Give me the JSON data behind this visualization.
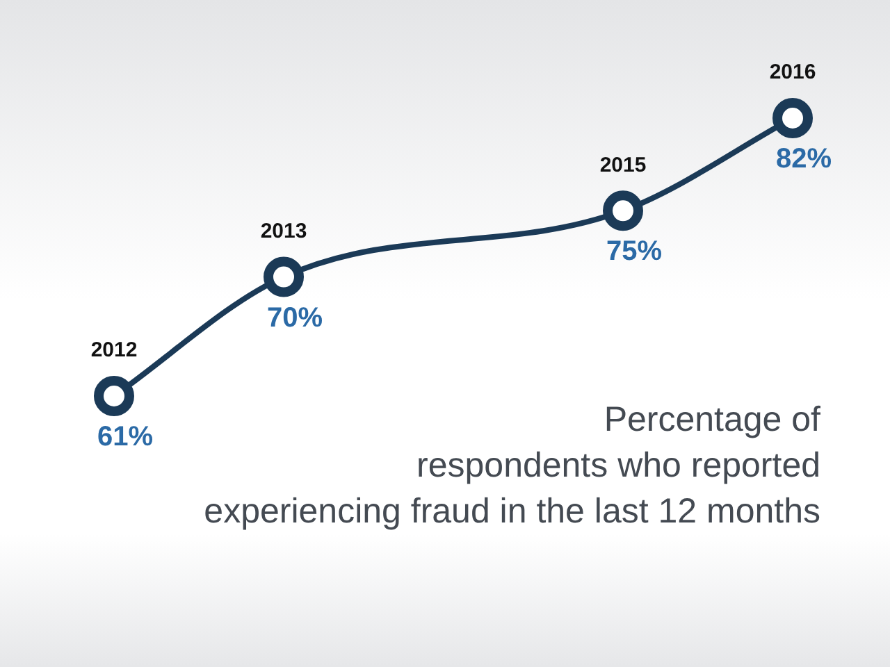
{
  "chart_data": {
    "type": "line",
    "title": "Percentage of\nrespondents who reported\nexperiencing fraud in the last 12 months",
    "categories": [
      "2012",
      "2013",
      null,
      "2015",
      "2016"
    ],
    "series": [
      {
        "color": "#1b3a57",
        "values": [
          61,
          70,
          null,
          75,
          82
        ],
        "value_labels": [
          "61%",
          "70%",
          null,
          "75%",
          "82%"
        ]
      }
    ],
    "marker": "circle"
  }
}
